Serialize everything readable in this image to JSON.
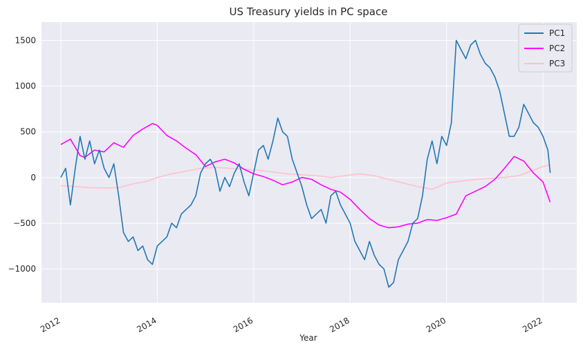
{
  "chart_data": {
    "type": "line",
    "title": "US Treasury yields in PC space",
    "xlabel": "Year",
    "ylabel": "",
    "xlim": [
      2011.6,
      2022.7
    ],
    "ylim": [
      -1370,
      1700
    ],
    "grid": true,
    "legend_position": "top-right",
    "x_ticks": [
      2012,
      2014,
      2016,
      2018,
      2020,
      2022
    ],
    "x_tick_labels": [
      "2012",
      "2014",
      "2016",
      "2018",
      "2020",
      "2022"
    ],
    "y_ticks": [
      1500,
      1000,
      500,
      0,
      -500,
      -1000
    ],
    "y_tick_labels": [
      "1500",
      "1000",
      "500",
      "0",
      "−500",
      "−1000"
    ],
    "colors": {
      "background": "#EAEAF2",
      "grid": "#FFFFFF"
    },
    "series": [
      {
        "name": "PC1",
        "color": "#1F77B4",
        "x": [
          2012.0,
          2012.1,
          2012.2,
          2012.3,
          2012.4,
          2012.5,
          2012.6,
          2012.7,
          2012.8,
          2012.9,
          2013.0,
          2013.1,
          2013.2,
          2013.3,
          2013.4,
          2013.5,
          2013.6,
          2013.7,
          2013.8,
          2013.9,
          2014.0,
          2014.1,
          2014.2,
          2014.3,
          2014.4,
          2014.5,
          2014.6,
          2014.7,
          2014.8,
          2014.9,
          2015.0,
          2015.1,
          2015.2,
          2015.3,
          2015.4,
          2015.5,
          2015.6,
          2015.7,
          2015.8,
          2015.9,
          2016.0,
          2016.1,
          2016.2,
          2016.3,
          2016.4,
          2016.5,
          2016.6,
          2016.7,
          2016.8,
          2016.9,
          2017.0,
          2017.1,
          2017.2,
          2017.3,
          2017.4,
          2017.5,
          2017.6,
          2017.7,
          2017.8,
          2017.9,
          2018.0,
          2018.1,
          2018.2,
          2018.3,
          2018.4,
          2018.5,
          2018.6,
          2018.7,
          2018.8,
          2018.9,
          2019.0,
          2019.1,
          2019.2,
          2019.3,
          2019.4,
          2019.5,
          2019.6,
          2019.7,
          2019.8,
          2019.9,
          2020.0,
          2020.1,
          2020.2,
          2020.3,
          2020.4,
          2020.5,
          2020.6,
          2020.7,
          2020.8,
          2020.9,
          2021.0,
          2021.1,
          2021.2,
          2021.3,
          2021.4,
          2021.5,
          2021.6,
          2021.7,
          2021.8,
          2021.9,
          2022.0,
          2022.1,
          2022.15
        ],
        "y": [
          0,
          100,
          -300,
          100,
          450,
          200,
          400,
          150,
          300,
          100,
          0,
          150,
          -200,
          -600,
          -700,
          -650,
          -800,
          -750,
          -900,
          -950,
          -750,
          -700,
          -650,
          -500,
          -550,
          -400,
          -350,
          -300,
          -200,
          50,
          150,
          200,
          100,
          -150,
          0,
          -100,
          50,
          150,
          -50,
          -200,
          50,
          300,
          350,
          200,
          400,
          650,
          500,
          450,
          200,
          50,
          -100,
          -300,
          -450,
          -400,
          -350,
          -500,
          -200,
          -150,
          -300,
          -400,
          -500,
          -700,
          -800,
          -900,
          -700,
          -850,
          -950,
          -1000,
          -1200,
          -1150,
          -900,
          -800,
          -700,
          -500,
          -450,
          -200,
          200,
          400,
          150,
          450,
          350,
          600,
          1500,
          1400,
          1300,
          1450,
          1500,
          1350,
          1250,
          1200,
          1100,
          950,
          700,
          450,
          450,
          550,
          800,
          700,
          600,
          550,
          450,
          300,
          50
        ]
      },
      {
        "name": "PC2",
        "color": "#FF00FF",
        "x": [
          2012.0,
          2012.2,
          2012.4,
          2012.5,
          2012.7,
          2012.9,
          2013.1,
          2013.3,
          2013.5,
          2013.7,
          2013.9,
          2014.0,
          2014.2,
          2014.4,
          2014.6,
          2014.8,
          2015.0,
          2015.2,
          2015.4,
          2015.6,
          2015.8,
          2016.0,
          2016.2,
          2016.4,
          2016.6,
          2016.8,
          2017.0,
          2017.2,
          2017.4,
          2017.6,
          2017.8,
          2018.0,
          2018.2,
          2018.4,
          2018.6,
          2018.8,
          2019.0,
          2019.2,
          2019.4,
          2019.6,
          2019.8,
          2020.0,
          2020.2,
          2020.4,
          2020.6,
          2020.8,
          2021.0,
          2021.2,
          2021.4,
          2021.6,
          2021.8,
          2022.0,
          2022.1,
          2022.15
        ],
        "y": [
          360,
          420,
          240,
          220,
          300,
          280,
          380,
          330,
          460,
          530,
          590,
          570,
          460,
          400,
          320,
          250,
          120,
          170,
          200,
          160,
          90,
          40,
          10,
          -30,
          -80,
          -50,
          0,
          -20,
          -80,
          -130,
          -160,
          -240,
          -350,
          -450,
          -520,
          -550,
          -540,
          -510,
          -500,
          -460,
          -470,
          -440,
          -400,
          -200,
          -150,
          -100,
          -20,
          100,
          230,
          180,
          50,
          -50,
          -200,
          -270
        ]
      },
      {
        "name": "PC3",
        "color": "#FFC0CB",
        "x": [
          2012.0,
          2012.3,
          2012.6,
          2012.9,
          2013.2,
          2013.5,
          2013.8,
          2014.0,
          2014.3,
          2014.6,
          2014.9,
          2015.2,
          2015.5,
          2015.8,
          2016.1,
          2016.4,
          2016.7,
          2017.0,
          2017.3,
          2017.6,
          2017.9,
          2018.2,
          2018.5,
          2018.8,
          2019.1,
          2019.4,
          2019.7,
          2020.0,
          2020.3,
          2020.6,
          2020.9,
          2021.2,
          2021.5,
          2021.8,
          2022.0,
          2022.15
        ],
        "y": [
          -90,
          -100,
          -110,
          -115,
          -110,
          -70,
          -40,
          0,
          40,
          70,
          100,
          110,
          100,
          90,
          80,
          60,
          40,
          30,
          20,
          0,
          20,
          40,
          20,
          -20,
          -60,
          -100,
          -130,
          -60,
          -40,
          -20,
          -10,
          0,
          20,
          80,
          120,
          140
        ]
      }
    ]
  }
}
